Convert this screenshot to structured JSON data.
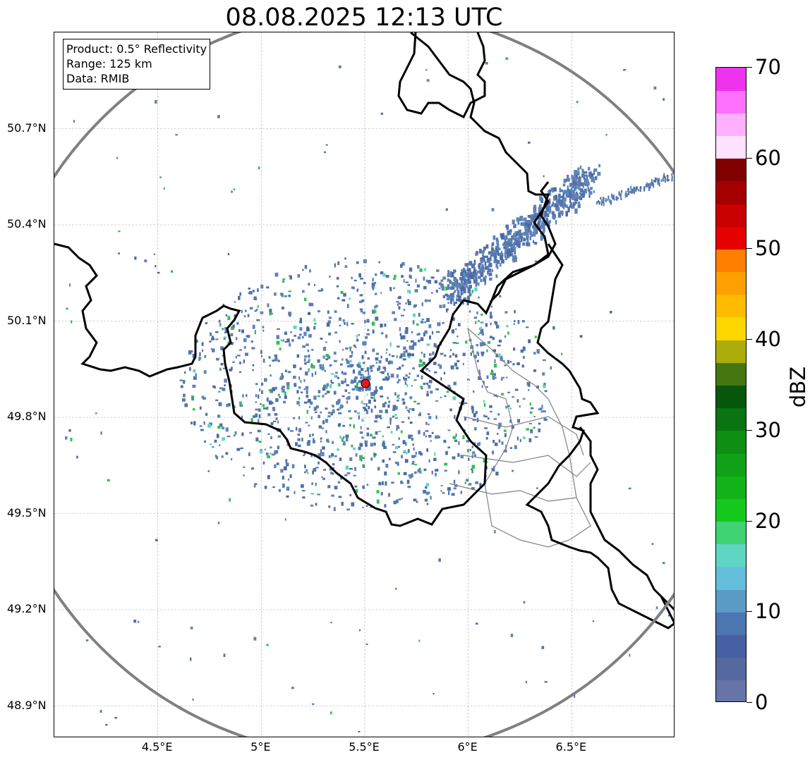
{
  "title": "08.08.2025 12:13 UTC",
  "info_box": {
    "product": "Product: 0.5° Reflectivity",
    "range": "Range: 125 km",
    "data_source": "Data: RMIB"
  },
  "axes": {
    "lon_ticks": [
      "4.5°E",
      "5°E",
      "5.5°E",
      "6°E",
      "6.5°E"
    ],
    "lat_ticks": [
      "50.7°N",
      "50.4°N",
      "50.1°N",
      "49.8°N",
      "49.5°N",
      "49.2°N",
      "48.9°N"
    ],
    "lon_values": [
      4.5,
      5.0,
      5.5,
      6.0,
      6.5
    ],
    "lat_values": [
      50.7,
      50.4,
      50.1,
      49.8,
      49.5,
      49.2,
      48.9
    ],
    "lon_range": [
      4.0,
      7.0
    ],
    "lat_range": [
      48.8,
      51.0
    ],
    "grid": true
  },
  "radar": {
    "site_lon": 5.5,
    "site_lat": 49.915,
    "range_km": 125,
    "site_marker_color": "#e41a1c",
    "range_ring_color": "#808080"
  },
  "colorbar": {
    "label": "dBZ",
    "min": 0,
    "max": 70,
    "step": 2.5,
    "tick_values": [
      0,
      10,
      20,
      30,
      40,
      50,
      60,
      70
    ],
    "tick_labels": [
      "0",
      "10",
      "20",
      "30",
      "40",
      "50",
      "60",
      "70"
    ],
    "colors": [
      "#6674a8",
      "#55689f",
      "#4760a4",
      "#4c77b0",
      "#5b9bc6",
      "#64bfda",
      "#5fd6c4",
      "#3fd372",
      "#14c81c",
      "#11b318",
      "#0fa116",
      "#0e8e12",
      "#0a7412",
      "#06560c",
      "#457612",
      "#acac0a",
      "#ffd700",
      "#ffbb00",
      "#ff9f00",
      "#ff7f00",
      "#e60000",
      "#c90000",
      "#a50000",
      "#800000",
      "#ffe2ff",
      "#ffb0ff",
      "#ff70ff",
      "#ee33ee"
    ]
  },
  "precipitation_description": "Scattered mostly weak echoes (0-20 dBZ) around the radar site with a band extending to the northeast; isolated 20-35 dBZ cells.",
  "colors": {
    "borders_country": "#000000",
    "borders_region": "#808080",
    "grid": "#b0b0b0"
  }
}
